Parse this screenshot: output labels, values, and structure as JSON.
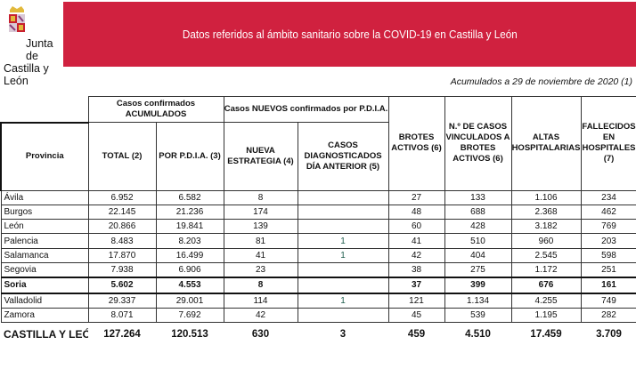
{
  "logo": {
    "line1": "Junta de",
    "line2": "Castilla y León"
  },
  "banner": {
    "title": "Datos referidos al ámbito sanitario sobre la COVID-19 en Castilla y León",
    "color": "#d0213f"
  },
  "date_note": "Acumulados a 29 de noviembre de 2020 (1)",
  "table": {
    "group_headers": {
      "acumulados": "Casos confirmados ACUMULADOS",
      "nuevos": "Casos NUEVOS confirmados por P.D.I.A."
    },
    "headers": [
      "Provincia",
      "TOTAL (2)",
      "POR P.D.I.A. (3)",
      "NUEVA ESTRATEGIA (4)",
      "CASOS DIAGNOSTICADOS DÍA ANTERIOR (5)",
      "BROTES ACTIVOS (6)",
      "N.º DE CASOS VINCULADOS A BROTES ACTIVOS (6)",
      "ALTAS HOSPITALARIAS",
      "FALLECIDOS EN HOSPITALES (7)"
    ],
    "rows": [
      [
        "Ávila",
        "6.952",
        "6.582",
        "8",
        "",
        "27",
        "133",
        "1.106",
        "234"
      ],
      [
        "Burgos",
        "22.145",
        "21.236",
        "174",
        "",
        "48",
        "688",
        "2.368",
        "462"
      ],
      [
        "León",
        "20.866",
        "19.841",
        "139",
        "",
        "60",
        "428",
        "3.182",
        "769"
      ],
      [
        "Palencia",
        "8.483",
        "8.203",
        "81",
        "1",
        "41",
        "510",
        "960",
        "203"
      ],
      [
        "Salamanca",
        "17.870",
        "16.499",
        "41",
        "1",
        "42",
        "404",
        "2.545",
        "598"
      ],
      [
        "Segovia",
        "7.938",
        "6.906",
        "23",
        "",
        "38",
        "275",
        "1.172",
        "251"
      ],
      [
        "Soria",
        "5.602",
        "4.553",
        "8",
        "",
        "37",
        "399",
        "676",
        "161"
      ],
      [
        "Valladolid",
        "29.337",
        "29.001",
        "114",
        "1",
        "121",
        "1.134",
        "4.255",
        "749"
      ],
      [
        "Zamora",
        "8.071",
        "7.692",
        "42",
        "",
        "45",
        "539",
        "1.195",
        "282"
      ]
    ],
    "highlighted_row": "Soria",
    "total": [
      "CASTILLA Y LEÓN",
      "127.264",
      "120.513",
      "630",
      "3",
      "459",
      "4.510",
      "17.459",
      "3.709"
    ]
  }
}
